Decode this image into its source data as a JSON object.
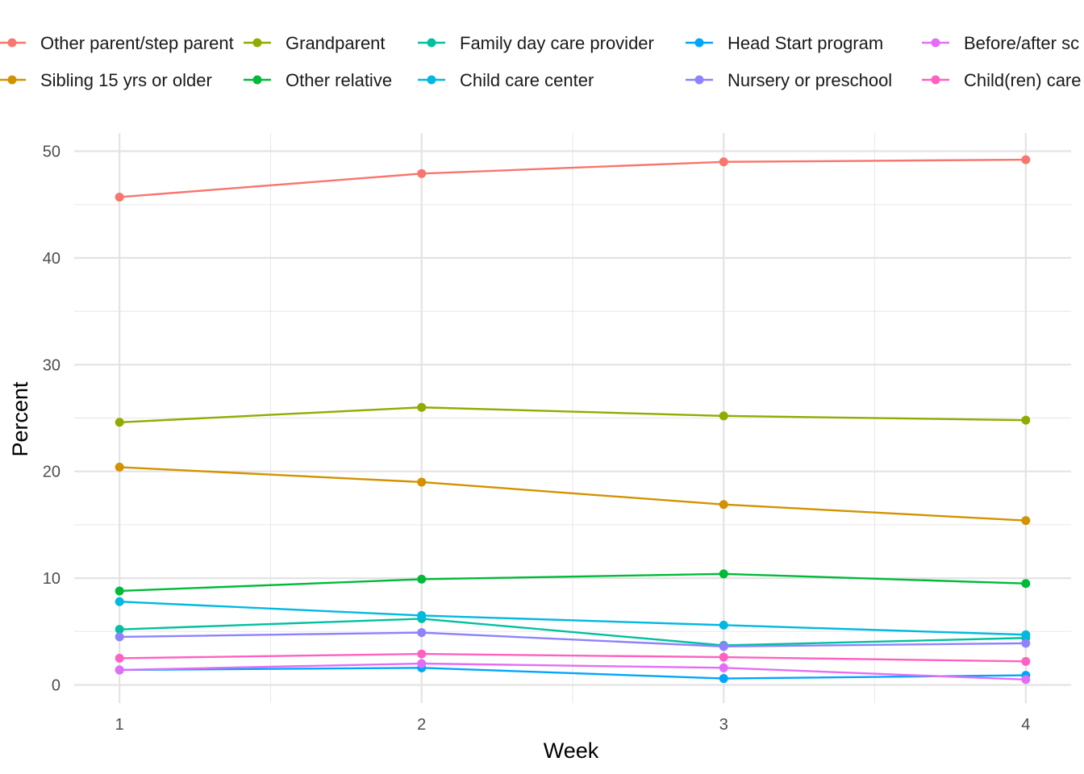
{
  "chart_data": {
    "type": "line",
    "xlabel": "Week",
    "ylabel": "Percent",
    "x": [
      1,
      2,
      3,
      4
    ],
    "x_ticks": [
      "1",
      "2",
      "3",
      "4"
    ],
    "y_ticks": [
      "0",
      "10",
      "20",
      "30",
      "40",
      "50"
    ],
    "xlim": [
      0.85,
      4.15
    ],
    "ylim": [
      -1.7,
      51.7
    ],
    "grid": true,
    "legend_position": "top",
    "series": [
      {
        "name": "Other parent/step parent",
        "color": "#F8766D",
        "values": [
          45.7,
          47.9,
          49.0,
          49.2
        ]
      },
      {
        "name": "Sibling 15 yrs or older",
        "color": "#D39200",
        "values": [
          20.4,
          19.0,
          16.9,
          15.4
        ]
      },
      {
        "name": "Grandparent",
        "color": "#93AA00",
        "values": [
          24.6,
          26.0,
          25.2,
          24.8
        ]
      },
      {
        "name": "Other relative",
        "color": "#00BA38",
        "values": [
          8.8,
          9.9,
          10.4,
          9.5
        ]
      },
      {
        "name": "Family day care provider",
        "color": "#00C19F",
        "values": [
          5.2,
          6.2,
          3.7,
          4.4
        ]
      },
      {
        "name": "Child care center",
        "color": "#00B9E3",
        "values": [
          7.8,
          6.5,
          5.6,
          4.7
        ]
      },
      {
        "name": "Head Start program",
        "color": "#00A5FF",
        "values": [
          1.4,
          1.6,
          0.6,
          0.9
        ]
      },
      {
        "name": "Nursery or preschool",
        "color": "#8E82FF",
        "values": [
          4.5,
          4.9,
          3.6,
          3.9
        ]
      },
      {
        "name": "Before/after sc",
        "color": "#E36EF6",
        "values": [
          1.4,
          2.0,
          1.6,
          0.5
        ]
      },
      {
        "name": "Child(ren) care",
        "color": "#FF61C3",
        "values": [
          2.5,
          2.9,
          2.6,
          2.2
        ]
      }
    ]
  }
}
